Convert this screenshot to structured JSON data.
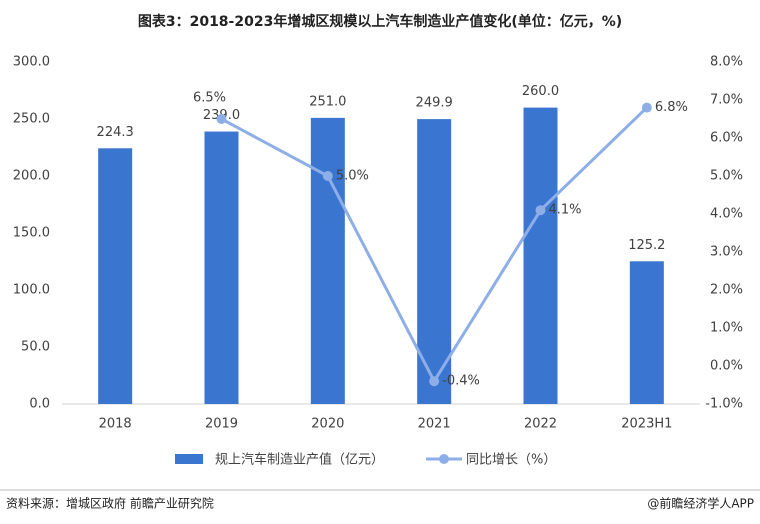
{
  "chart_data": {
    "type": "bar",
    "title": "图表3：2018-2023年增城区规模以上汽车制造业产值变化(单位：亿元，%)",
    "categories": [
      "2018",
      "2019",
      "2020",
      "2021",
      "2022",
      "2023H1"
    ],
    "series": [
      {
        "name": "规上汽车制造业产值（亿元）",
        "type": "bar",
        "color": "#3a76d0",
        "values": [
          224.3,
          239.0,
          251.0,
          249.9,
          260.0,
          125.2
        ],
        "value_labels": [
          "224.3",
          "239.0",
          "251.0",
          "249.9",
          "260.0",
          "125.2"
        ]
      },
      {
        "name": "同比增长（%）",
        "type": "line",
        "axis": "y2",
        "color": "#8eaee8",
        "values": [
          null,
          6.5,
          5.0,
          -0.4,
          4.1,
          6.8
        ],
        "value_labels": [
          null,
          "6.5%",
          "5.0%",
          "-0.4%",
          "4.1%",
          "6.8%"
        ]
      }
    ],
    "ylim": [
      0,
      300
    ],
    "yticks": [
      {
        "value": 0,
        "label": "0.0"
      },
      {
        "value": 50,
        "label": "50.0"
      },
      {
        "value": 100,
        "label": "100.0"
      },
      {
        "value": 150,
        "label": "150.0"
      },
      {
        "value": 200,
        "label": "200.0"
      },
      {
        "value": 250,
        "label": "250.0"
      },
      {
        "value": 300,
        "label": "300.0"
      }
    ],
    "y2lim": [
      -1,
      8
    ],
    "y2ticks": [
      {
        "value": -1,
        "label": "-1.0%"
      },
      {
        "value": 0,
        "label": "0.0%"
      },
      {
        "value": 1,
        "label": "1.0%"
      },
      {
        "value": 2,
        "label": "2.0%"
      },
      {
        "value": 3,
        "label": "3.0%"
      },
      {
        "value": 4,
        "label": "4.0%"
      },
      {
        "value": 5,
        "label": "5.0%"
      },
      {
        "value": 6,
        "label": "6.0%"
      },
      {
        "value": 7,
        "label": "7.0%"
      },
      {
        "value": 8,
        "label": "8.0%"
      }
    ],
    "grid": false,
    "legend": "bottom",
    "source": "资料来源：增城区政府 前瞻产业研究院",
    "credit": "@前瞻经济学人APP"
  }
}
